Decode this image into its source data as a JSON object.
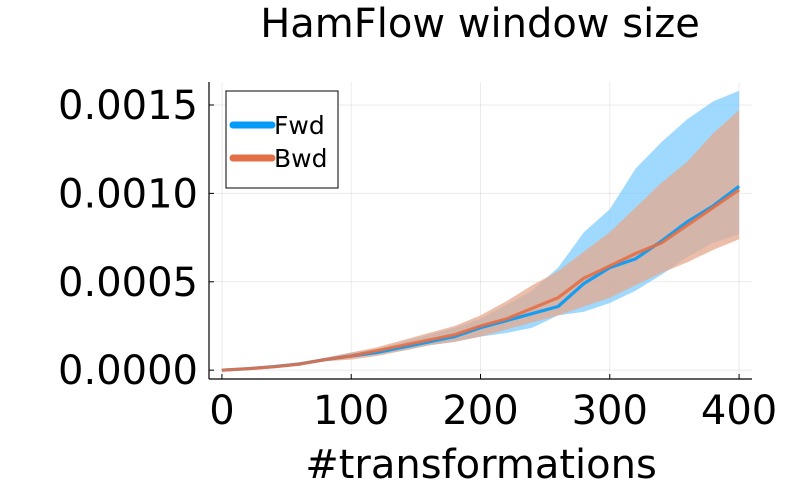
{
  "chart_data": {
    "type": "line",
    "title": "HamFlow window size",
    "xlabel": "#transformations",
    "ylabel": "",
    "xlim": [
      -10,
      410
    ],
    "ylim": [
      -5e-05,
      0.00163
    ],
    "x_ticks": [
      0,
      100,
      200,
      300,
      400
    ],
    "x_tick_labels": [
      "0",
      "100",
      "200",
      "300",
      "400"
    ],
    "y_ticks": [
      0.0,
      0.0005,
      0.001,
      0.0015
    ],
    "y_tick_labels": [
      "0.0000",
      "0.0005",
      "0.0010",
      "0.0015"
    ],
    "grid": true,
    "legend_position": "top-left",
    "x": [
      0,
      20,
      40,
      60,
      80,
      100,
      120,
      140,
      160,
      180,
      200,
      220,
      240,
      260,
      280,
      300,
      320,
      340,
      360,
      380,
      400
    ],
    "series": [
      {
        "name": "Fwd",
        "color": "#009af9",
        "band_color": "#7fccfc",
        "values": [
          0.0,
          8e-06,
          2e-05,
          3.5e-05,
          6e-05,
          8e-05,
          0.0001,
          0.00013,
          0.00016,
          0.00019,
          0.00024,
          0.00028,
          0.00032,
          0.00036,
          0.00049,
          0.00058,
          0.00063,
          0.00073,
          0.00084,
          0.00093,
          0.00104
        ],
        "lower": [
          0.0,
          6e-06,
          1.7e-05,
          3e-05,
          5e-05,
          7e-05,
          9e-05,
          0.00011,
          0.00014,
          0.00016,
          0.00019,
          0.00021,
          0.00024,
          0.00031,
          0.00033,
          0.00038,
          0.00045,
          0.00054,
          0.00064,
          0.00072,
          0.00077
        ],
        "upper": [
          0.0,
          1e-05,
          2.3e-05,
          4.5e-05,
          7e-05,
          0.0001,
          0.00012,
          0.00016,
          0.0002,
          0.00024,
          0.00029,
          0.00037,
          0.00045,
          0.00058,
          0.00078,
          0.00091,
          0.00114,
          0.00129,
          0.00142,
          0.00152,
          0.00158
        ]
      },
      {
        "name": "Bwd",
        "color": "#e26f46",
        "band_color": "#e5a88e",
        "values": [
          0.0,
          8e-06,
          1.9e-05,
          3.4e-05,
          6e-05,
          8e-05,
          0.00011,
          0.00014,
          0.00017,
          0.0002,
          0.00025,
          0.00029,
          0.00035,
          0.00041,
          0.00052,
          0.00059,
          0.00066,
          0.00072,
          0.00082,
          0.00092,
          0.00102
        ],
        "lower": [
          0.0,
          6e-06,
          1.5e-05,
          3e-05,
          5e-05,
          6e-05,
          8e-05,
          0.00011,
          0.00014,
          0.00016,
          0.00019,
          0.00023,
          0.00027,
          0.00031,
          0.00036,
          0.00041,
          0.00048,
          0.00055,
          0.00061,
          0.00068,
          0.00074
        ],
        "upper": [
          0.0,
          1e-05,
          2.3e-05,
          4e-05,
          7e-05,
          0.0001,
          0.00013,
          0.00017,
          0.00021,
          0.00025,
          0.00031,
          0.00039,
          0.00048,
          0.00056,
          0.00067,
          0.00078,
          0.00092,
          0.00106,
          0.00118,
          0.00134,
          0.00147
        ]
      }
    ]
  }
}
